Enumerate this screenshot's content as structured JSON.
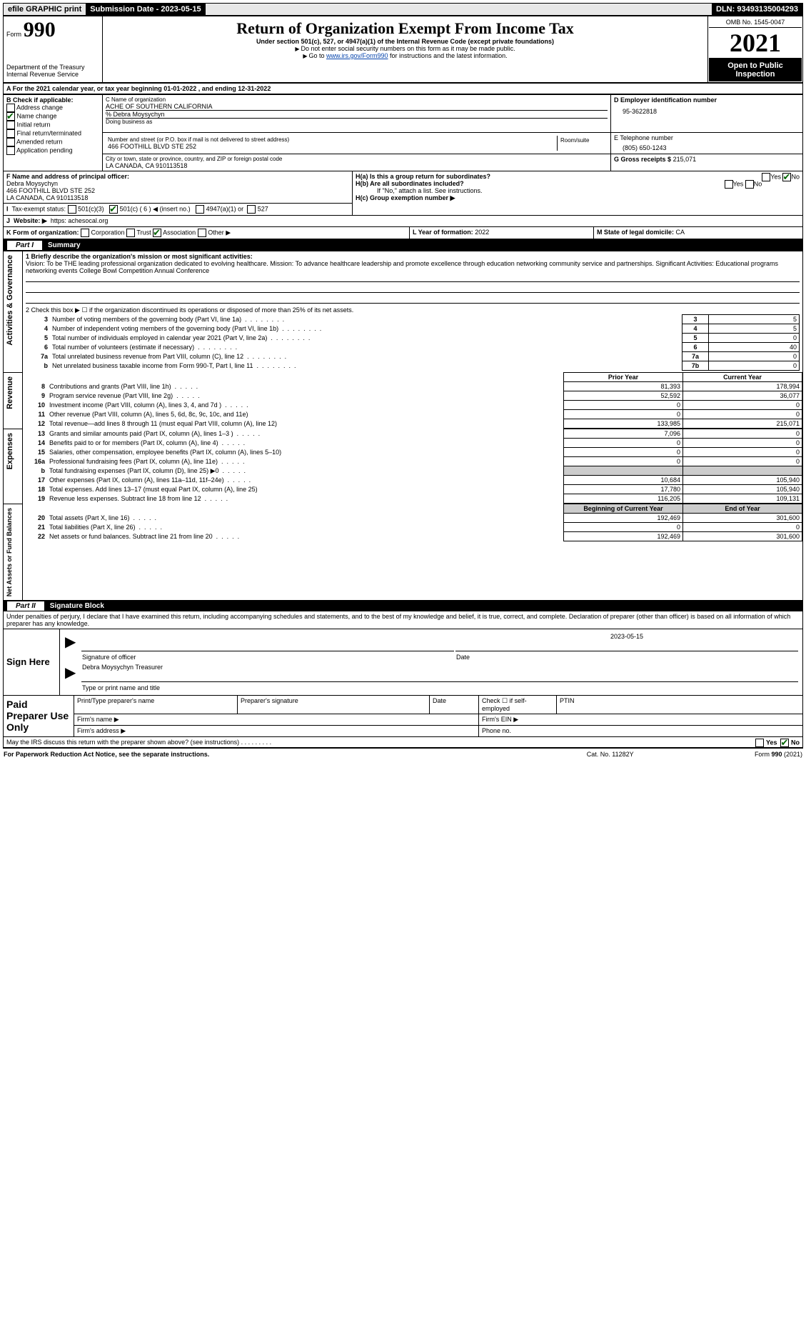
{
  "topbar": {
    "efile": "efile GRAPHIC print",
    "submission_label": "Submission Date -",
    "submission_date": "2023-05-15",
    "dln_label": "DLN:",
    "dln": "93493135004293"
  },
  "header": {
    "form_label": "Form",
    "form_no": "990",
    "title": "Return of Organization Exempt From Income Tax",
    "subtitle": "Under section 501(c), 527, or 4947(a)(1) of the Internal Revenue Code (except private foundations)",
    "note1": "Do not enter social security numbers on this form as it may be made public.",
    "note2_prefix": "Go to ",
    "note2_link": "www.irs.gov/Form990",
    "note2_suffix": " for instructions and the latest information.",
    "dept": "Department of the Treasury",
    "irs": "Internal Revenue Service",
    "omb_label": "OMB No. 1545-0047",
    "year": "2021",
    "open": "Open to Public Inspection"
  },
  "sectionA": {
    "period": "A For the 2021 calendar year, or tax year beginning 01-01-2022    , and ending 12-31-2022",
    "B_label": "B Check if applicable:",
    "b_items": [
      "Address change",
      "Name change",
      "Initial return",
      "Final return/terminated",
      "Amended return",
      "Application pending"
    ],
    "C_name_label": "C Name of organization",
    "org_name": "ACHE OF SOUTHERN CALIFORNIA",
    "care_of": "% Debra Moysychyn",
    "dba_label": "Doing business as",
    "addr_label": "Number and street (or P.O. box if mail is not delivered to street address)",
    "addr": "466 FOOTHILL BLVD STE 252",
    "room_label": "Room/suite",
    "city_label": "City or town, state or province, country, and ZIP or foreign postal code",
    "city": "LA CANADA, CA  910113518",
    "D_label": "D Employer identification number",
    "ein": "95-3622818",
    "E_label": "E Telephone number",
    "phone": "(805) 650-1243",
    "G_label": "G Gross receipts $",
    "gross": "215,071",
    "F_label": "F  Name and address of principal officer:",
    "officer_name": "Debra Moysychyn",
    "officer_addr1": "466 FOOTHILL BLVD STE 252",
    "officer_addr2": "LA CANADA, CA  910113518",
    "Ha_label": "H(a)  Is this a group return for subordinates?",
    "Hb_label": "H(b)  Are all subordinates included?",
    "Hb_note": "If \"No,\" attach a list. See instructions.",
    "Hc_label": "H(c)  Group exemption number ▶",
    "yes": "Yes",
    "no": "No",
    "I_label": "Tax-exempt status:",
    "i_501c3": "501(c)(3)",
    "i_501c": "501(c) ( 6 ) ◀ (insert no.)",
    "i_4947": "4947(a)(1) or",
    "i_527": "527",
    "J_label": "Website: ▶",
    "website": "https: achesocal.org",
    "K_label": "K Form of organization:",
    "k_corp": "Corporation",
    "k_trust": "Trust",
    "k_assoc": "Association",
    "k_other": "Other ▶",
    "L_label": "L Year of formation:",
    "L_val": "2022",
    "M_label": "M State of legal domicile:",
    "M_val": "CA"
  },
  "part1": {
    "title": "Summary",
    "labels": {
      "gov": "Activities & Governance",
      "rev": "Revenue",
      "exp": "Expenses",
      "net": "Net Assets or Fund Balances"
    },
    "l1": "1  Briefly describe the organization's mission or most significant activities:",
    "mission": "Vision: To be THE leading professional organization dedicated to evolving healthcare. Mission: To advance healthcare leadership and promote excellence through education networking community service and partnerships. Significant Activities: Educational programs networking events College Bowl Competition Annual Conference",
    "l2": "2   Check this box ▶ ☐  if the organization discontinued its operations or disposed of more than 25% of its net assets.",
    "rows_gov": [
      {
        "n": "3",
        "t": "Number of voting members of the governing body (Part VI, line 1a)",
        "box": "3",
        "v": "5"
      },
      {
        "n": "4",
        "t": "Number of independent voting members of the governing body (Part VI, line 1b)",
        "box": "4",
        "v": "5"
      },
      {
        "n": "5",
        "t": "Total number of individuals employed in calendar year 2021 (Part V, line 2a)",
        "box": "5",
        "v": "0"
      },
      {
        "n": "6",
        "t": "Total number of volunteers (estimate if necessary)",
        "box": "6",
        "v": "40"
      },
      {
        "n": "7a",
        "t": "Total unrelated business revenue from Part VIII, column (C), line 12",
        "box": "7a",
        "v": "0"
      },
      {
        "n": "b",
        "t": "Net unrelated business taxable income from Form 990-T, Part I, line 11",
        "box": "7b",
        "v": "0"
      }
    ],
    "col_prior": "Prior Year",
    "col_curr": "Current Year",
    "rows_rev": [
      {
        "n": "8",
        "t": "Contributions and grants (Part VIII, line 1h)",
        "p": "81,393",
        "c": "178,994"
      },
      {
        "n": "9",
        "t": "Program service revenue (Part VIII, line 2g)",
        "p": "52,592",
        "c": "36,077"
      },
      {
        "n": "10",
        "t": "Investment income (Part VIII, column (A), lines 3, 4, and 7d )",
        "p": "0",
        "c": "0"
      },
      {
        "n": "11",
        "t": "Other revenue (Part VIII, column (A), lines 5, 6d, 8c, 9c, 10c, and 11e)",
        "p": "0",
        "c": "0"
      },
      {
        "n": "12",
        "t": "Total revenue—add lines 8 through 11 (must equal Part VIII, column (A), line 12)",
        "p": "133,985",
        "c": "215,071"
      }
    ],
    "rows_exp": [
      {
        "n": "13",
        "t": "Grants and similar amounts paid (Part IX, column (A), lines 1–3 )",
        "p": "7,096",
        "c": "0"
      },
      {
        "n": "14",
        "t": "Benefits paid to or for members (Part IX, column (A), line 4)",
        "p": "0",
        "c": "0"
      },
      {
        "n": "15",
        "t": "Salaries, other compensation, employee benefits (Part IX, column (A), lines 5–10)",
        "p": "0",
        "c": "0"
      },
      {
        "n": "16a",
        "t": "Professional fundraising fees (Part IX, column (A), line 11e)",
        "p": "0",
        "c": "0"
      },
      {
        "n": "b",
        "t": "Total fundraising expenses (Part IX, column (D), line 25) ▶0",
        "p": "",
        "c": ""
      },
      {
        "n": "17",
        "t": "Other expenses (Part IX, column (A), lines 11a–11d, 11f–24e)",
        "p": "10,684",
        "c": "105,940"
      },
      {
        "n": "18",
        "t": "Total expenses. Add lines 13–17 (must equal Part IX, column (A), line 25)",
        "p": "17,780",
        "c": "105,940"
      },
      {
        "n": "19",
        "t": "Revenue less expenses. Subtract line 18 from line 12",
        "p": "116,205",
        "c": "109,131"
      }
    ],
    "col_begin": "Beginning of Current Year",
    "col_end": "End of Year",
    "rows_net": [
      {
        "n": "20",
        "t": "Total assets (Part X, line 16)",
        "p": "192,469",
        "c": "301,600"
      },
      {
        "n": "21",
        "t": "Total liabilities (Part X, line 26)",
        "p": "0",
        "c": "0"
      },
      {
        "n": "22",
        "t": "Net assets or fund balances. Subtract line 21 from line 20",
        "p": "192,469",
        "c": "301,600"
      }
    ]
  },
  "part2": {
    "title": "Signature Block",
    "decl": "Under penalties of perjury, I declare that I have examined this return, including accompanying schedules and statements, and to the best of my knowledge and belief, it is true, correct, and complete. Declaration of preparer (other than officer) is based on all information of which preparer has any knowledge.",
    "sign_here": "Sign Here",
    "sig_label": "Signature of officer",
    "date_label": "Date",
    "sig_date": "2023-05-15",
    "name_title": "Debra Moysychyn  Treasurer",
    "type_label": "Type or print name and title",
    "paid_prep": "Paid Preparer Use Only",
    "pp_name": "Print/Type preparer's name",
    "pp_sig": "Preparer's signature",
    "pp_date": "Date",
    "pp_check": "Check ☐ if self-employed",
    "pp_ptin": "PTIN",
    "firm_name": "Firm's name   ▶",
    "firm_ein": "Firm's EIN ▶",
    "firm_addr": "Firm's address ▶",
    "phone_no": "Phone no.",
    "may_irs": "May the IRS discuss this return with the preparer shown above? (see instructions)",
    "paperwork": "For Paperwork Reduction Act Notice, see the separate instructions.",
    "cat": "Cat. No. 11282Y",
    "formfoot": "Form 990 (2021)"
  }
}
